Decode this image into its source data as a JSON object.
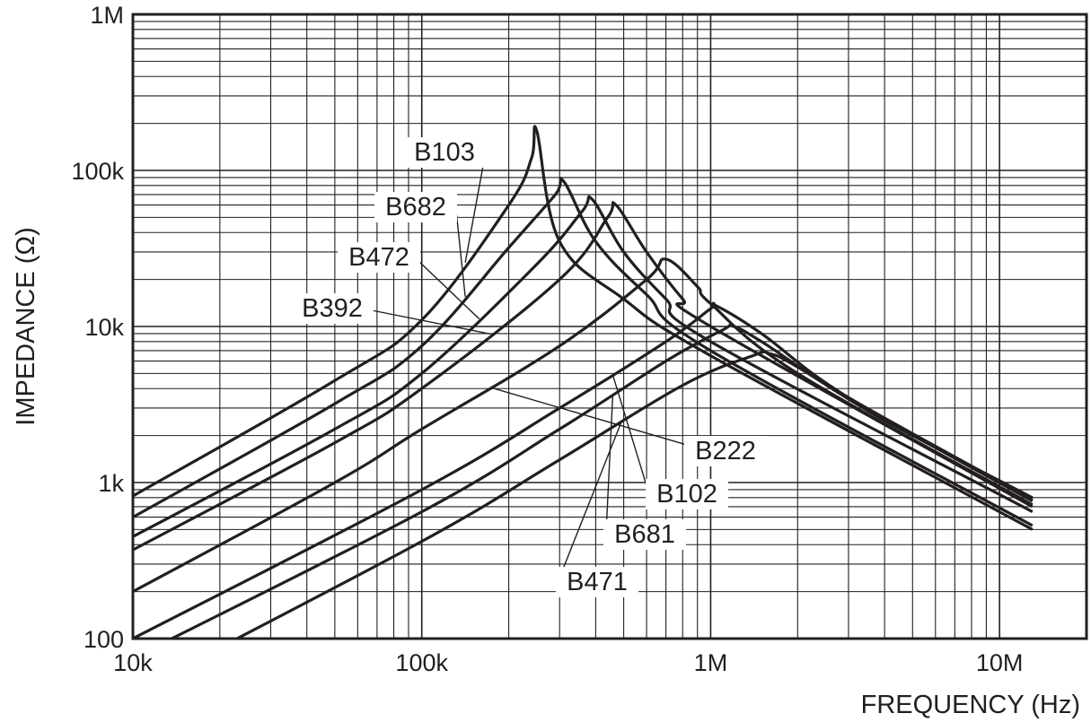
{
  "chart_data": {
    "type": "line",
    "xlabel": "FREQUENCY (Hz)",
    "ylabel": "IMPEDANCE (Ω)",
    "x_scale": "log",
    "y_scale": "log",
    "xlim": [
      10000,
      20000000
    ],
    "ylim": [
      100,
      1000000
    ],
    "grid": true,
    "x_ticks": [
      {
        "value": 10000,
        "label": "10k"
      },
      {
        "value": 100000,
        "label": "100k"
      },
      {
        "value": 1000000,
        "label": "1M"
      },
      {
        "value": 10000000,
        "label": "10M"
      }
    ],
    "y_ticks": [
      {
        "value": 100,
        "label": "100"
      },
      {
        "value": 1000,
        "label": "1k"
      },
      {
        "value": 10000,
        "label": "10k"
      },
      {
        "value": 100000,
        "label": "100k"
      },
      {
        "value": 1000000,
        "label": "1M"
      }
    ],
    "series": [
      {
        "name": "B103",
        "x": [
          10000,
          50000,
          100000,
          200000,
          240000,
          250000,
          300000,
          500000,
          1000000,
          13000000
        ],
        "y": [
          820,
          4500,
          11000,
          60000,
          120000,
          180000,
          35000,
          15000,
          6500,
          500
        ]
      },
      {
        "name": "B682",
        "x": [
          10000,
          50000,
          100000,
          200000,
          290000,
          310000,
          400000,
          600000,
          1000000,
          13000000
        ],
        "y": [
          600,
          3200,
          7500,
          32000,
          70000,
          85000,
          35000,
          16000,
          7000,
          530
        ]
      },
      {
        "name": "B472",
        "x": [
          10000,
          50000,
          100000,
          250000,
          360000,
          390000,
          500000,
          700000,
          1000000,
          13000000
        ],
        "y": [
          450,
          2200,
          5000,
          25000,
          55000,
          65000,
          30000,
          15000,
          8000,
          650
        ]
      },
      {
        "name": "B392",
        "x": [
          10000,
          50000,
          100000,
          300000,
          440000,
          470000,
          600000,
          800000,
          1000000,
          13000000
        ],
        "y": [
          370,
          1800,
          4000,
          20000,
          50000,
          60000,
          30000,
          15000,
          10000,
          700
        ]
      },
      {
        "name": "B222",
        "x": [
          10000,
          50000,
          100000,
          300000,
          600000,
          700000,
          900000,
          1000000,
          2000000,
          13000000
        ],
        "y": [
          200,
          1000,
          2200,
          7500,
          20000,
          27000,
          18000,
          14000,
          5000,
          720
        ]
      },
      {
        "name": "B102",
        "x": [
          10000,
          100000,
          300000,
          700000,
          1000000,
          1050000,
          1500000,
          3000000,
          13000000
        ],
        "y": [
          100,
          900,
          3000,
          8000,
          13000,
          13500,
          9000,
          3500,
          760
        ]
      },
      {
        "name": "B681",
        "x": [
          10000,
          100000,
          300000,
          700000,
          1100000,
          1200000,
          1500000,
          3000000,
          13000000
        ],
        "y": [
          75,
          650,
          2200,
          6000,
          9500,
          10000,
          8000,
          3500,
          780
        ]
      },
      {
        "name": "B471",
        "x": [
          10000,
          100000,
          300000,
          800000,
          1400000,
          1600000,
          2000000,
          4000000,
          13000000
        ],
        "y": [
          45,
          420,
          1400,
          4200,
          6500,
          6700,
          5500,
          2500,
          800
        ]
      }
    ]
  }
}
